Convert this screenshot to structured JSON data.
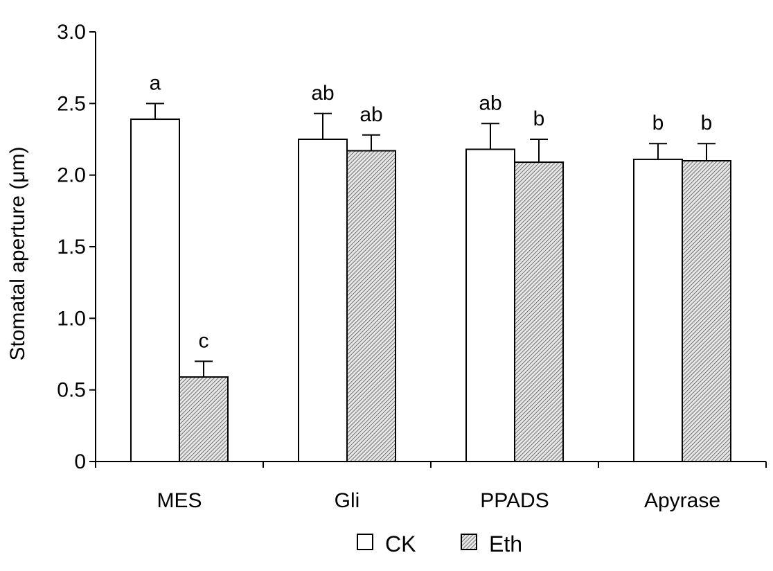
{
  "chart_data": {
    "type": "bar",
    "ylabel": "Stomatal aperture (μm)",
    "xlabel": "",
    "ylim": [
      0,
      3.0
    ],
    "yticks": [
      {
        "value": 0,
        "label": "0"
      },
      {
        "value": 0.5,
        "label": "0.5"
      },
      {
        "value": 1.0,
        "label": "1.0"
      },
      {
        "value": 1.5,
        "label": "1.5"
      },
      {
        "value": 2.0,
        "label": "2.0"
      },
      {
        "value": 2.5,
        "label": "2.5"
      },
      {
        "value": 3.0,
        "label": "3.0"
      }
    ],
    "categories": [
      "MES",
      "Gli",
      "PPADS",
      "Apyrase"
    ],
    "series": [
      {
        "name": "CK",
        "fill": "#ffffff",
        "values": [
          2.39,
          2.25,
          2.18,
          2.11
        ],
        "errors": [
          0.11,
          0.18,
          0.18,
          0.11
        ],
        "labels": [
          "a",
          "ab",
          "ab",
          "b"
        ]
      },
      {
        "name": "Eth",
        "fill": "hatched",
        "values": [
          0.59,
          2.17,
          2.09,
          2.1
        ],
        "errors": [
          0.11,
          0.11,
          0.16,
          0.12
        ],
        "labels": [
          "c",
          "ab",
          "b",
          "b"
        ]
      }
    ],
    "legend": "bottom-center",
    "grid": false
  }
}
